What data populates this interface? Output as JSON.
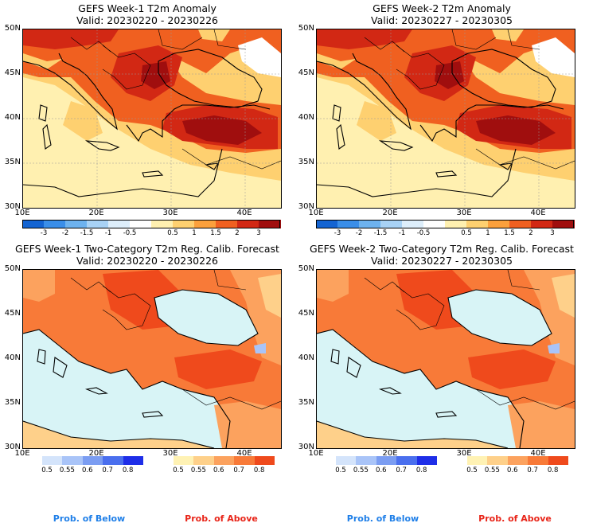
{
  "panels": [
    {
      "title": "GEFS Week-1 T2m Anomaly",
      "valid": "Valid: 20230220 - 20230226"
    },
    {
      "title": "GEFS Week-2 T2m Anomaly",
      "valid": "Valid: 20230227 - 20230305"
    },
    {
      "title": "GEFS Week-1 Two-Category T2m Reg. Calib. Forecast",
      "valid": "Valid: 20230220 - 20230226"
    },
    {
      "title": "GEFS Week-2 Two-Category T2m Reg. Calib. Forecast",
      "valid": "Valid: 20230227 - 20230305"
    }
  ],
  "lat_labels": [
    "50N",
    "45N",
    "40N",
    "35N",
    "30N"
  ],
  "lon_labels": [
    "10E",
    "20E",
    "30E",
    "40E"
  ],
  "anomaly_colorbar": {
    "ticks": [
      "-3",
      "-2",
      "-1.5",
      "-1",
      "-0.5",
      "0.5",
      "1",
      "1.5",
      "2",
      "3"
    ],
    "colors": [
      "#1464d2",
      "#3a8ee8",
      "#6db2ee",
      "#a8d2f5",
      "#ddeefb",
      "#ffffff",
      "#fff0b0",
      "#fed070",
      "#fba03c",
      "#f06020",
      "#d22814",
      "#a00e0e"
    ]
  },
  "below_colorbar": {
    "ticks": [
      "0.5",
      "0.55",
      "0.6",
      "0.7",
      "0.8"
    ],
    "colors": [
      "#d4e4fb",
      "#a9c4f8",
      "#7b9df2",
      "#4a6fee",
      "#1e2ee8"
    ]
  },
  "above_colorbar": {
    "ticks": [
      "0.5",
      "0.55",
      "0.6",
      "0.7",
      "0.8"
    ],
    "colors": [
      "#fff2b4",
      "#fed08a",
      "#fca25e",
      "#f87a38",
      "#ef4a1c"
    ]
  },
  "labels": {
    "below": "Prob. of Below",
    "above": "Prob. of Above"
  },
  "colors": {
    "below_text": "#1f7fe8",
    "above_text": "#e82418",
    "sea_prob": "#d8f4f6"
  }
}
